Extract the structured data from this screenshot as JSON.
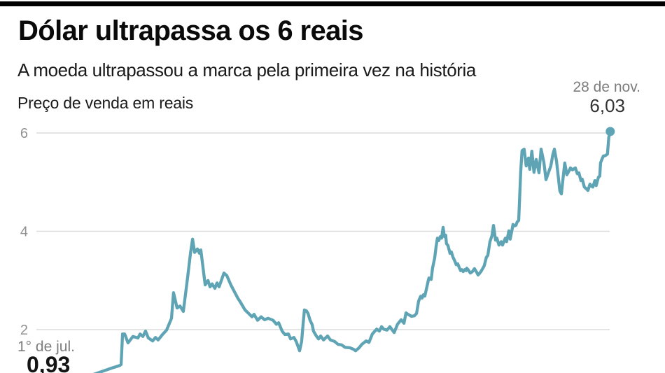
{
  "header": {
    "title": "Dólar ultrapassa os 6 reais",
    "subtitle": "A moeda ultrapassou a marca pela primeira vez na história",
    "axis_label": "Preço de venda em reais"
  },
  "annotations": {
    "end_date": "28 de nov.",
    "end_value": "6,03",
    "start_date": "1° de jul.",
    "start_value": "0,93"
  },
  "colors": {
    "line": "#5ea4b4",
    "grid": "#dcdcdc",
    "tick": "#909090",
    "muted_text": "#7d7d7d",
    "dark_text": "#333333",
    "topbar": "#000000"
  },
  "chart_data": {
    "type": "line",
    "title": "Dólar ultrapassa os 6 reais",
    "subtitle": "A moeda ultrapassou a marca pela primeira vez na história",
    "ylabel": "Preço de venda em reais",
    "unit": "reais por dólar (preço de venda)",
    "x_start_label": "1° de jul.",
    "x_end_label": "28 de nov.",
    "start_value": 0.93,
    "end_value": 6.03,
    "yticks": [
      2,
      4,
      6
    ],
    "ylim_visible": [
      0.9,
      6.2
    ],
    "grid": "horizontal",
    "legend": "none",
    "points": [
      [
        1994.5,
        0.93
      ],
      [
        1995.06,
        0.86
      ],
      [
        1995.8,
        0.89
      ],
      [
        1996.55,
        0.99
      ],
      [
        1997.29,
        1.07
      ],
      [
        1997.96,
        1.16
      ],
      [
        1998.41,
        1.22
      ],
      [
        1998.82,
        1.27
      ],
      [
        1998.89,
        1.29
      ],
      [
        1998.97,
        1.91
      ],
      [
        1999.08,
        1.91
      ],
      [
        1999.26,
        1.73
      ],
      [
        1999.52,
        1.86
      ],
      [
        1999.79,
        1.83
      ],
      [
        1999.9,
        1.91
      ],
      [
        2000.05,
        1.86
      ],
      [
        2000.19,
        1.97
      ],
      [
        2000.34,
        1.83
      ],
      [
        2000.57,
        1.77
      ],
      [
        2000.72,
        1.84
      ],
      [
        2000.86,
        1.79
      ],
      [
        2001.09,
        1.9
      ],
      [
        2001.31,
        1.99
      ],
      [
        2001.57,
        2.23
      ],
      [
        2001.68,
        2.75
      ],
      [
        2001.87,
        2.44
      ],
      [
        2002.02,
        2.48
      ],
      [
        2002.2,
        2.37
      ],
      [
        2002.43,
        3.07
      ],
      [
        2002.58,
        3.55
      ],
      [
        2002.69,
        3.84
      ],
      [
        2002.8,
        3.57
      ],
      [
        2002.95,
        3.64
      ],
      [
        2003.06,
        3.55
      ],
      [
        2003.13,
        3.62
      ],
      [
        2003.36,
        2.91
      ],
      [
        2003.51,
        3.0
      ],
      [
        2003.62,
        2.87
      ],
      [
        2003.73,
        2.93
      ],
      [
        2003.88,
        2.84
      ],
      [
        2003.99,
        2.95
      ],
      [
        2004.1,
        2.87
      ],
      [
        2004.36,
        3.15
      ],
      [
        2004.51,
        3.1
      ],
      [
        2004.74,
        2.9
      ],
      [
        2005.11,
        2.63
      ],
      [
        2005.22,
        2.57
      ],
      [
        2005.48,
        2.4
      ],
      [
        2005.67,
        2.33
      ],
      [
        2005.85,
        2.26
      ],
      [
        2005.96,
        2.31
      ],
      [
        2006.15,
        2.19
      ],
      [
        2006.34,
        2.26
      ],
      [
        2006.52,
        2.2
      ],
      [
        2006.71,
        2.23
      ],
      [
        2006.97,
        2.19
      ],
      [
        2007.15,
        2.11
      ],
      [
        2007.27,
        2.14
      ],
      [
        2007.45,
        1.97
      ],
      [
        2007.6,
        1.9
      ],
      [
        2007.79,
        1.91
      ],
      [
        2007.9,
        1.81
      ],
      [
        2008.08,
        1.84
      ],
      [
        2008.2,
        1.76
      ],
      [
        2008.38,
        1.57
      ],
      [
        2008.49,
        1.76
      ],
      [
        2008.57,
        2.13
      ],
      [
        2008.64,
        2.4
      ],
      [
        2008.75,
        2.38
      ],
      [
        2008.83,
        2.33
      ],
      [
        2008.94,
        2.19
      ],
      [
        2009.05,
        2.1
      ],
      [
        2009.12,
        1.97
      ],
      [
        2009.27,
        1.87
      ],
      [
        2009.39,
        1.81
      ],
      [
        2009.5,
        1.87
      ],
      [
        2009.65,
        1.79
      ],
      [
        2009.87,
        1.87
      ],
      [
        2010.02,
        1.79
      ],
      [
        2010.24,
        1.76
      ],
      [
        2010.43,
        1.7
      ],
      [
        2010.61,
        1.69
      ],
      [
        2010.8,
        1.64
      ],
      [
        2011.06,
        1.63
      ],
      [
        2011.25,
        1.6
      ],
      [
        2011.36,
        1.57
      ],
      [
        2011.54,
        1.63
      ],
      [
        2011.69,
        1.7
      ],
      [
        2011.92,
        1.77
      ],
      [
        2012.07,
        1.74
      ],
      [
        2012.25,
        1.91
      ],
      [
        2012.48,
        2.01
      ],
      [
        2012.62,
        1.97
      ],
      [
        2012.74,
        2.06
      ],
      [
        2012.85,
        2.01
      ],
      [
        2013.03,
        1.99
      ],
      [
        2013.18,
        2.06
      ],
      [
        2013.41,
        1.94
      ],
      [
        2013.59,
        2.11
      ],
      [
        2013.78,
        2.2
      ],
      [
        2013.93,
        2.13
      ],
      [
        2014.04,
        2.34
      ],
      [
        2014.19,
        2.3
      ],
      [
        2014.33,
        2.27
      ],
      [
        2014.48,
        2.28
      ],
      [
        2014.6,
        2.33
      ],
      [
        2014.71,
        2.58
      ],
      [
        2014.82,
        2.68
      ],
      [
        2014.89,
        2.64
      ],
      [
        2014.97,
        2.71
      ],
      [
        2015.04,
        2.68
      ],
      [
        2015.23,
        3.01
      ],
      [
        2015.26,
        3.05
      ],
      [
        2015.38,
        3.02
      ],
      [
        2015.45,
        3.25
      ],
      [
        2015.56,
        3.45
      ],
      [
        2015.64,
        3.69
      ],
      [
        2015.71,
        3.86
      ],
      [
        2015.78,
        3.81
      ],
      [
        2015.86,
        3.89
      ],
      [
        2015.93,
        3.86
      ],
      [
        2016.01,
        4.08
      ],
      [
        2016.08,
        3.89
      ],
      [
        2016.15,
        3.92
      ],
      [
        2016.19,
        3.75
      ],
      [
        2016.27,
        3.71
      ],
      [
        2016.38,
        3.55
      ],
      [
        2016.45,
        3.58
      ],
      [
        2016.53,
        3.48
      ],
      [
        2016.64,
        3.39
      ],
      [
        2016.71,
        3.32
      ],
      [
        2016.79,
        3.34
      ],
      [
        2016.86,
        3.27
      ],
      [
        2016.94,
        3.2
      ],
      [
        2017.01,
        3.22
      ],
      [
        2017.08,
        3.18
      ],
      [
        2017.16,
        3.22
      ],
      [
        2017.23,
        3.2
      ],
      [
        2017.27,
        3.25
      ],
      [
        2017.34,
        3.22
      ],
      [
        2017.46,
        3.15
      ],
      [
        2017.57,
        3.18
      ],
      [
        2017.68,
        3.24
      ],
      [
        2017.79,
        3.17
      ],
      [
        2017.87,
        3.11
      ],
      [
        2018.02,
        3.18
      ],
      [
        2018.13,
        3.25
      ],
      [
        2018.2,
        3.3
      ],
      [
        2018.31,
        3.47
      ],
      [
        2018.39,
        3.51
      ],
      [
        2018.5,
        3.79
      ],
      [
        2018.61,
        3.91
      ],
      [
        2018.69,
        4.12
      ],
      [
        2018.8,
        3.82
      ],
      [
        2018.87,
        3.86
      ],
      [
        2018.98,
        3.72
      ],
      [
        2019.1,
        3.79
      ],
      [
        2019.17,
        3.72
      ],
      [
        2019.32,
        3.86
      ],
      [
        2019.39,
        3.79
      ],
      [
        2019.51,
        4.01
      ],
      [
        2019.58,
        3.84
      ],
      [
        2019.65,
        3.98
      ],
      [
        2019.73,
        4.14
      ],
      [
        2019.8,
        4.11
      ],
      [
        2019.88,
        4.12
      ],
      [
        2019.95,
        4.19
      ],
      [
        2020.03,
        4.22
      ],
      [
        2020.14,
        5.22
      ],
      [
        2020.21,
        5.64
      ],
      [
        2020.32,
        5.67
      ],
      [
        2020.43,
        5.33
      ],
      [
        2020.55,
        5.49
      ],
      [
        2020.62,
        5.26
      ],
      [
        2020.73,
        5.63
      ],
      [
        2020.84,
        5.2
      ],
      [
        2020.96,
        5.46
      ],
      [
        2021.11,
        5.19
      ],
      [
        2021.22,
        5.67
      ],
      [
        2021.37,
        5.4
      ],
      [
        2021.48,
        5.05
      ],
      [
        2021.59,
        5.17
      ],
      [
        2021.74,
        5.33
      ],
      [
        2021.85,
        5.57
      ],
      [
        2021.93,
        5.67
      ],
      [
        2022.04,
        5.43
      ],
      [
        2022.11,
        5.19
      ],
      [
        2022.22,
        4.82
      ],
      [
        2022.3,
        4.76
      ],
      [
        2022.41,
        5.15
      ],
      [
        2022.48,
        5.39
      ],
      [
        2022.59,
        5.15
      ],
      [
        2022.71,
        5.23
      ],
      [
        2022.78,
        5.29
      ],
      [
        2022.89,
        5.25
      ],
      [
        2023.04,
        5.29
      ],
      [
        2023.15,
        5.17
      ],
      [
        2023.23,
        5.19
      ],
      [
        2023.34,
        5.03
      ],
      [
        2023.41,
        5.06
      ],
      [
        2023.52,
        4.9
      ],
      [
        2023.64,
        4.86
      ],
      [
        2023.71,
        4.83
      ],
      [
        2023.82,
        4.96
      ],
      [
        2023.89,
        4.92
      ],
      [
        2023.97,
        4.9
      ],
      [
        2024.08,
        5.03
      ],
      [
        2024.15,
        4.93
      ],
      [
        2024.27,
        5.1
      ],
      [
        2024.34,
        5.12
      ],
      [
        2024.38,
        5.39
      ],
      [
        2024.45,
        5.46
      ],
      [
        2024.53,
        5.53
      ],
      [
        2024.64,
        5.54
      ],
      [
        2024.71,
        5.56
      ],
      [
        2024.75,
        5.57
      ],
      [
        2024.82,
        5.91
      ],
      [
        2024.9,
        6.03
      ]
    ]
  }
}
